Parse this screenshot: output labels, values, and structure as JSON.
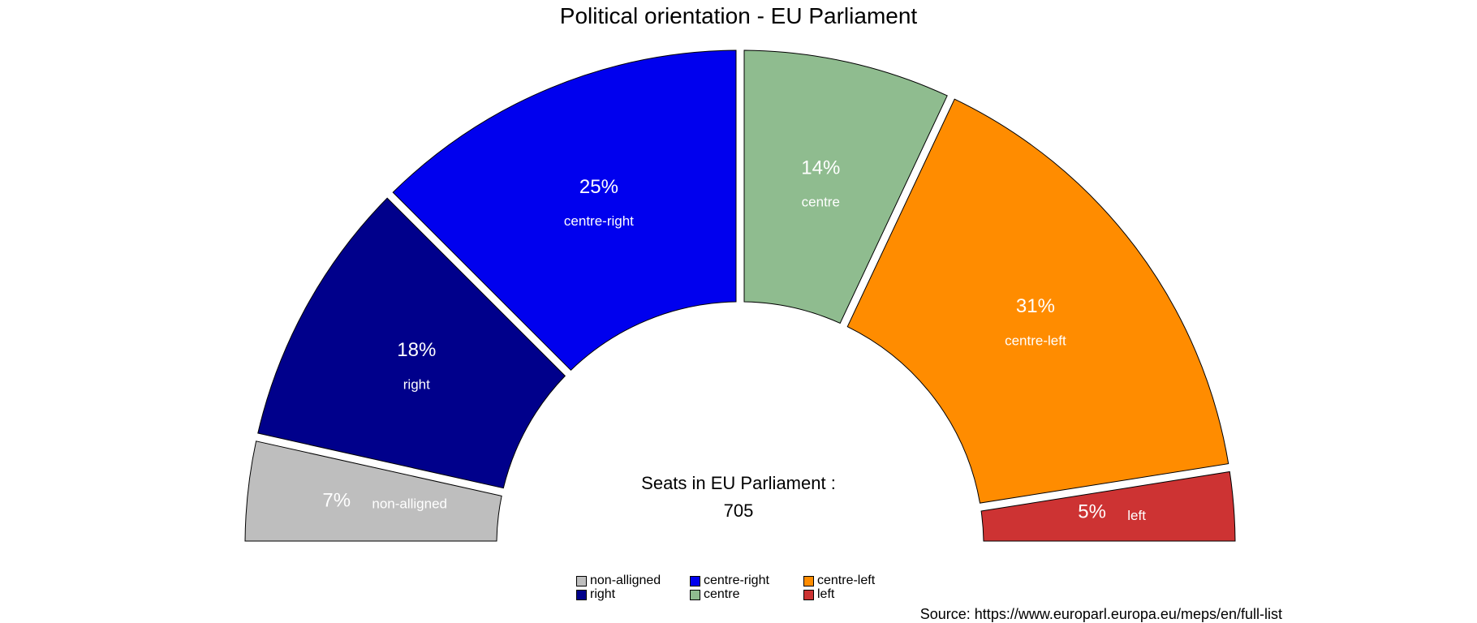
{
  "chart_data": {
    "type": "pie",
    "subtype": "semicircle-donut",
    "title": "Political orientation -  EU Parliament",
    "categories": [
      "non-alligned",
      "right",
      "centre-right",
      "centre",
      "centre-left",
      "left"
    ],
    "values": [
      7,
      18,
      25,
      14,
      31,
      5
    ],
    "value_labels": [
      "7%",
      "18%",
      "25%",
      "14%",
      "31%",
      "5%"
    ],
    "colors": [
      "#bebebe",
      "#00008b",
      "#0000ee",
      "#8fbc8f",
      "#ff8c00",
      "#cd3333"
    ],
    "center_text": {
      "line1": "Seats in EU Parliament :",
      "line2": "705"
    },
    "legend": {
      "placement": "bottom",
      "entries": [
        {
          "label": "non-alligned",
          "color": "#bebebe"
        },
        {
          "label": "right",
          "color": "#00008b"
        },
        {
          "label": "centre-right",
          "color": "#0000ee"
        },
        {
          "label": "centre",
          "color": "#8fbc8f"
        },
        {
          "label": "centre-left",
          "color": "#ff8c00"
        },
        {
          "label": "left",
          "color": "#cd3333"
        }
      ]
    },
    "source": "Source: https://www.europarl.europa.eu/meps/en/full-list"
  }
}
